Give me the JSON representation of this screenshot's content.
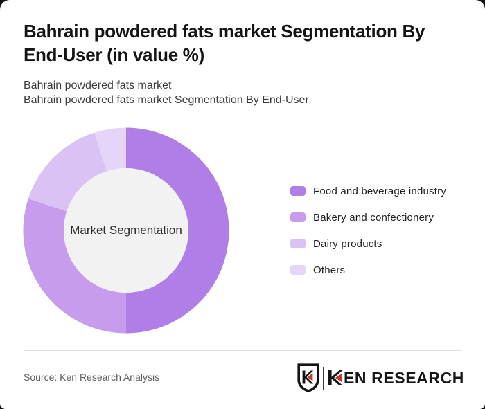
{
  "page": {
    "title": "Bahrain powdered fats market Segmentation By End-User (in value %)",
    "subtitle_line1": "Bahrain powdered fats market",
    "subtitle_line2": "Bahrain powdered fats market Segmentation By End-User"
  },
  "chart_data": {
    "type": "pie",
    "subtype": "donut",
    "title": "Bahrain powdered fats market Segmentation By End-User (in value %)",
    "center_label": "Market Segmentation",
    "categories": [
      "Food and beverage industry",
      "Bakery and confectionery",
      "Dairy products",
      "Others"
    ],
    "values": [
      50,
      30,
      15,
      5
    ],
    "unit": "%",
    "colors": [
      "#af7ee6",
      "#c79ced",
      "#dbc2f4",
      "#e5d5f8"
    ],
    "center_fill": "#f2f2f2",
    "start_angle_deg": 0,
    "direction": "clockwise",
    "legend_position": "right"
  },
  "footer": {
    "source": "Source: Ken Research Analysis",
    "logo": {
      "emblem_letter": "K",
      "wordmark": "KEN RESEARCH",
      "text_color": "#161616",
      "accent_color": "#c5382f"
    }
  }
}
